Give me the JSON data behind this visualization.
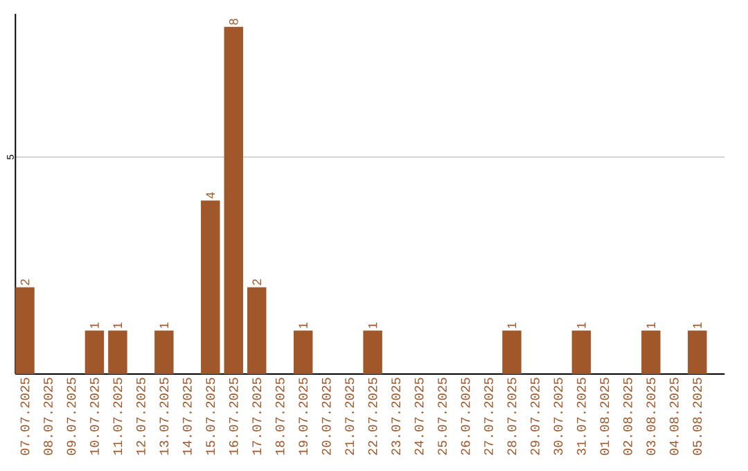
{
  "chart_data": {
    "type": "bar",
    "categories": [
      "07.07.2025",
      "08.07.2025",
      "09.07.2025",
      "10.07.2025",
      "11.07.2025",
      "12.07.2025",
      "13.07.2025",
      "14.07.2025",
      "15.07.2025",
      "16.07.2025",
      "17.07.2025",
      "18.07.2025",
      "19.07.2025",
      "20.07.2025",
      "21.07.2025",
      "22.07.2025",
      "23.07.2025",
      "24.07.2025",
      "25.07.2025",
      "26.07.2025",
      "27.07.2025",
      "28.07.2025",
      "29.07.2025",
      "30.07.2025",
      "31.07.2025",
      "01.08.2025",
      "02.08.2025",
      "03.08.2025",
      "04.08.2025",
      "05.08.2025"
    ],
    "values": [
      2,
      0,
      0,
      1,
      1,
      0,
      1,
      0,
      4,
      8,
      2,
      0,
      1,
      0,
      0,
      1,
      0,
      0,
      0,
      0,
      0,
      1,
      0,
      0,
      1,
      0,
      0,
      1,
      0,
      1
    ],
    "value_labels": [
      "2",
      null,
      null,
      "1",
      "1",
      null,
      "1",
      null,
      "4",
      "8",
      "2",
      null,
      "1",
      null,
      null,
      "1",
      null,
      null,
      null,
      null,
      null,
      "1",
      null,
      null,
      "1",
      null,
      null,
      "1",
      null,
      "1"
    ],
    "color": "#a0572a",
    "ylim": [
      0,
      8.3
    ],
    "yticks": [
      5
    ],
    "grid": "y"
  }
}
